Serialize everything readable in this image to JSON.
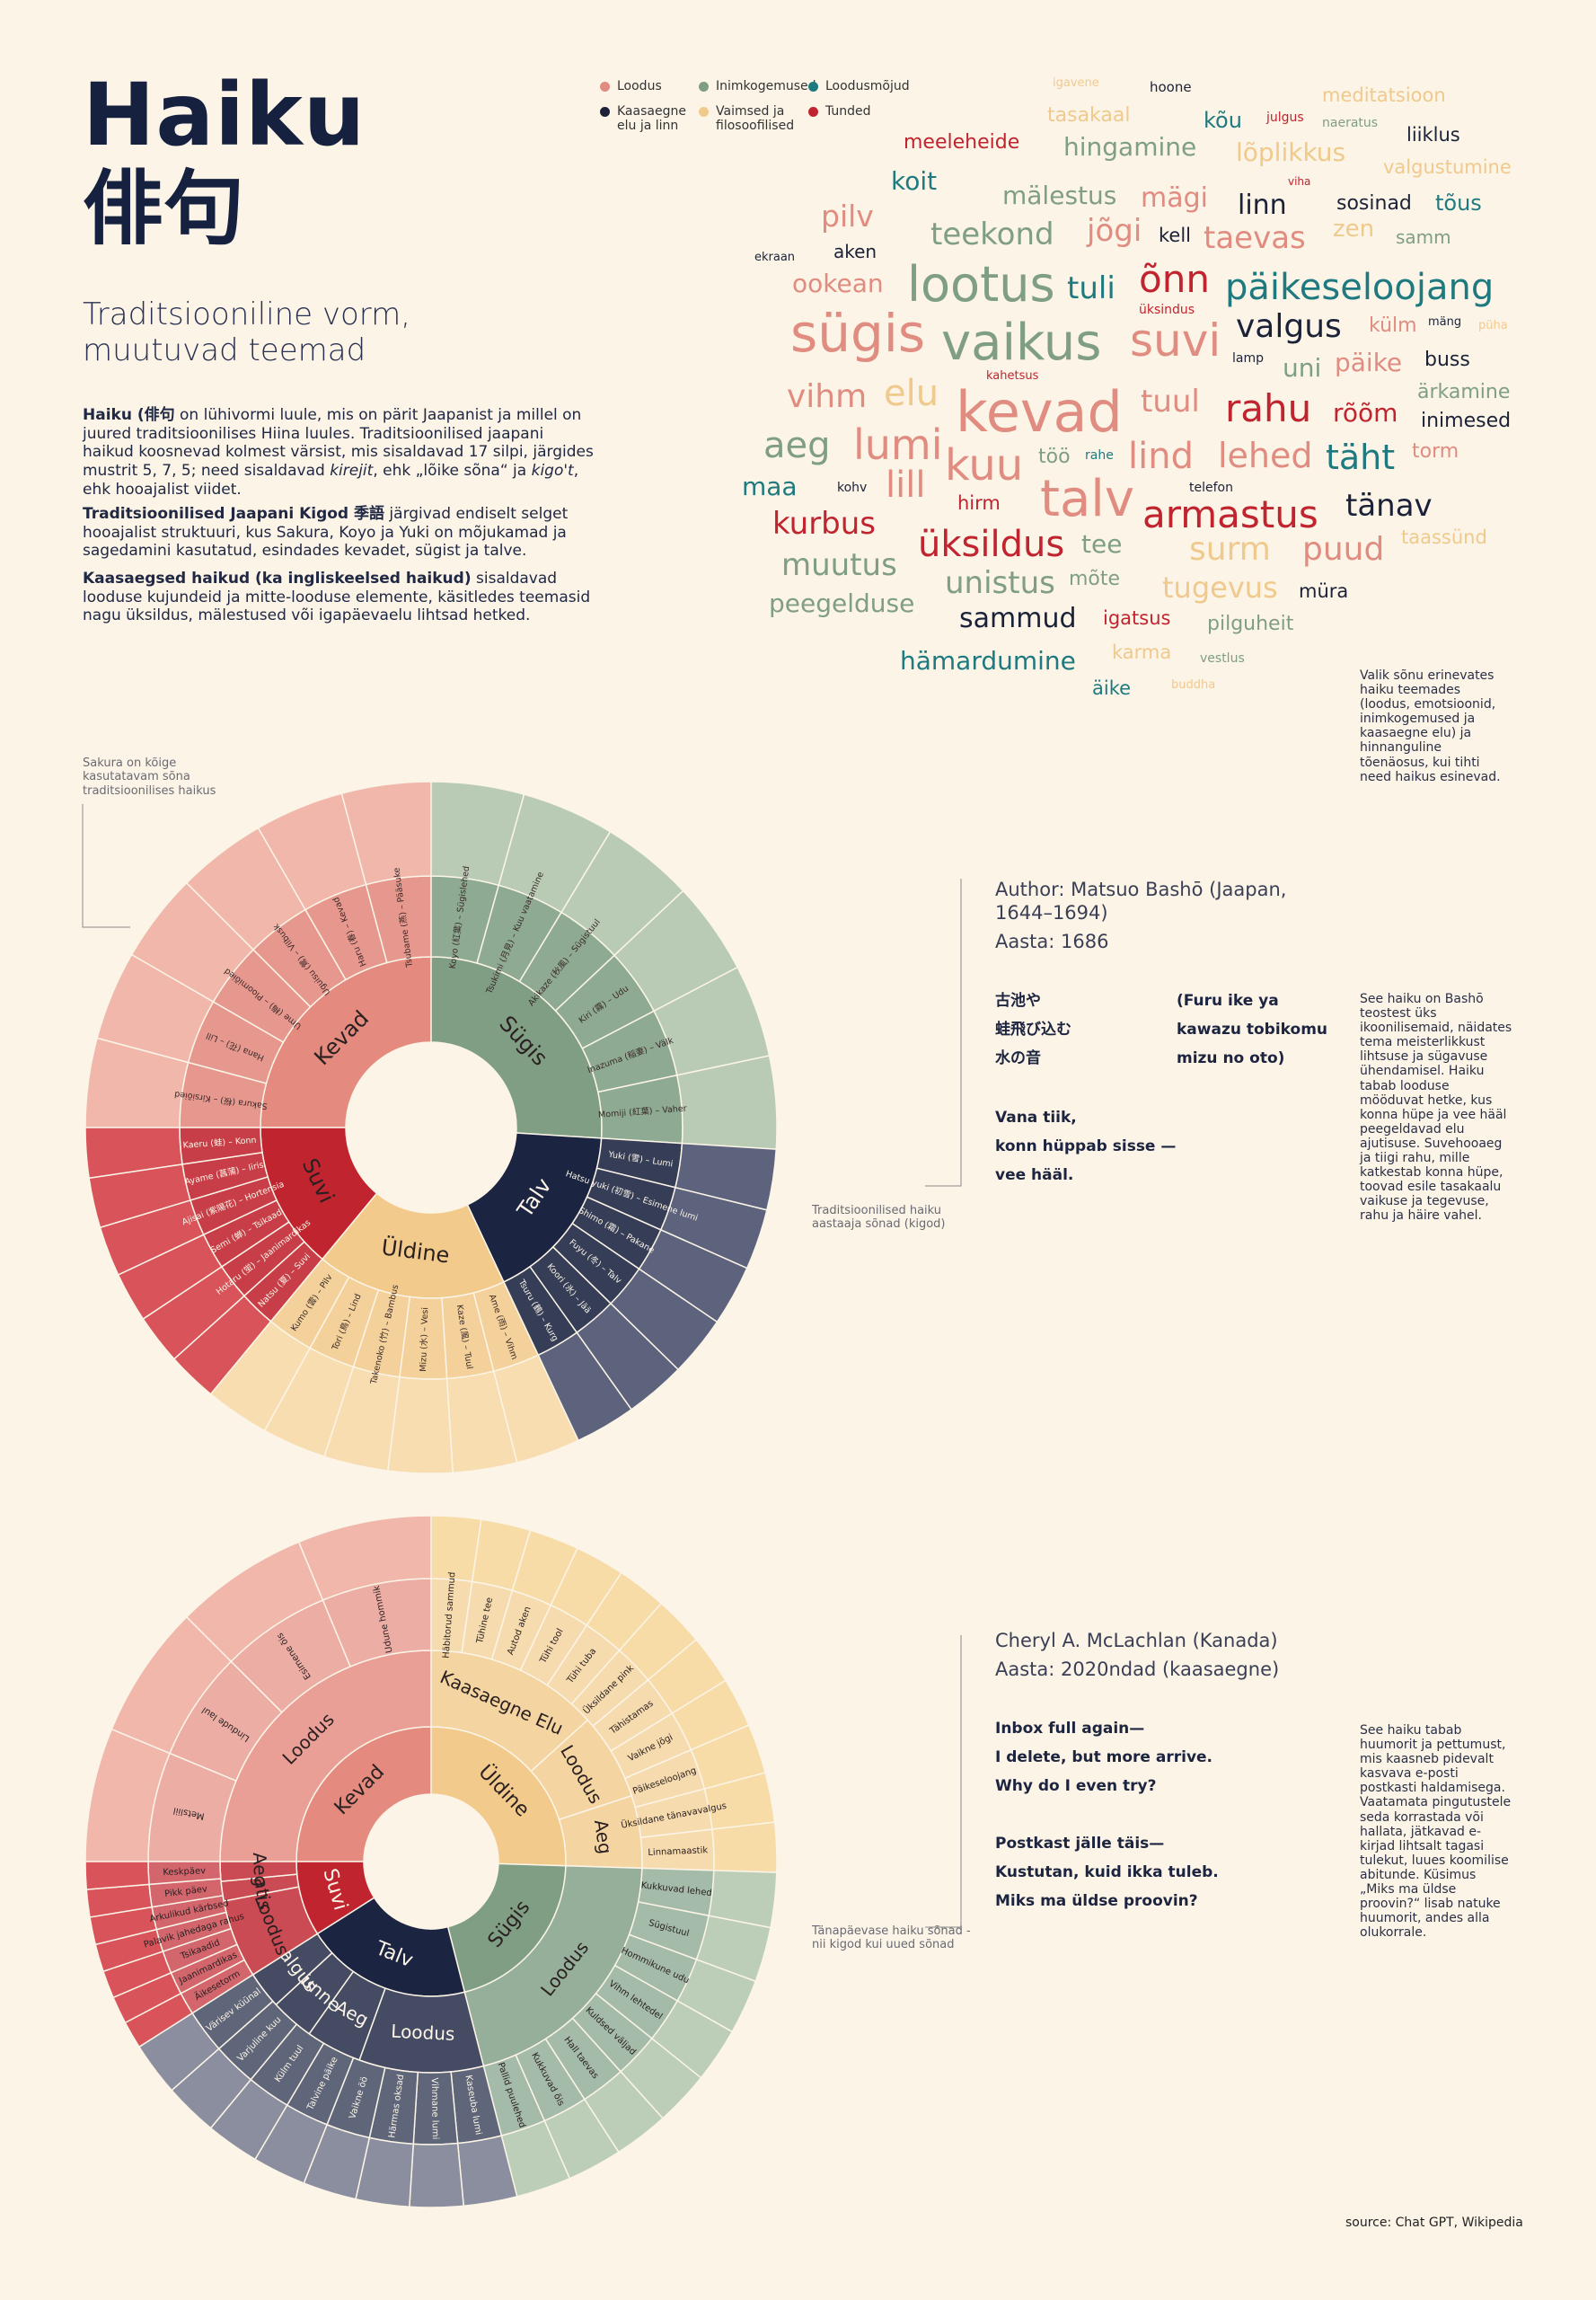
{
  "header": {
    "title": "Haiku",
    "title_jp": "俳句",
    "subtitle": "Traditsiooniline  vorm, muutuvad teemad"
  },
  "intro": {
    "p1_bold": "Haiku (俳句",
    "p1_rest": " on lühivormi luule, mis on pärit Jaapanist ja millel on juured traditsioonilises Hiina luules. Traditsioonilised jaapani haikud koosnevad kolmest värsist, mis sisaldavad 17 silpi, järgides mustrit 5, 7, 5; need sisaldavad ",
    "p1_kire": "kirejit",
    "p1_mid": ", ehk „lõike sõna“ ja ",
    "p1_kigo": "kigo't",
    "p1_end": ", ehk hooajalist viidet.",
    "p2_bold": "Traditsioonilised Jaapani Kigod 季語",
    "p2_rest": " järgivad endiselt selget hooajalist struktuuri, kus Sakura, Koyo ja Yuki on mõjukamad ja sagedamini kasutatud, esindades kevadet, sügist ja talve.",
    "p3_bold": "Kaasaegsed haikud (ka ingliskeelsed haikud)",
    "p3_rest": " sisaldavad looduse kujundeid ja mitte-looduse elemente, käsitledes teemasid nagu üksildus, mälestused või igapäevaelu lihtsad hetked."
  },
  "legend": [
    {
      "label": "Loodus",
      "color": "#e08c80"
    },
    {
      "label": "Inimkogemused",
      "color": "#7f9e84"
    },
    {
      "label": "Loodusmõjud",
      "color": "#1f7a80"
    },
    {
      "label": "Kaasaegne elu ja linn",
      "color": "#1b2238"
    },
    {
      "label": "Vaimsed ja filosoofilised",
      "color": "#f0c98c"
    },
    {
      "label": "Tunded",
      "color": "#c0242f"
    }
  ],
  "wordcloud": [
    {
      "t": "igavene",
      "c": "#f2c98f",
      "s": 13
    },
    {
      "t": "hoone",
      "c": "#1b2238",
      "s": 15
    },
    {
      "t": "meditatsioon",
      "c": "#f0c98c",
      "s": 21
    },
    {
      "t": "tasakaal",
      "c": "#f0c98c",
      "s": 22
    },
    {
      "t": "kõu",
      "c": "#1f7a80",
      "s": 24
    },
    {
      "t": "julgus",
      "c": "#c0242f",
      "s": 14
    },
    {
      "t": "naeratus",
      "c": "#7f9e84",
      "s": 14
    },
    {
      "t": "meeleheide",
      "c": "#c0242f",
      "s": 22
    },
    {
      "t": "hingamine",
      "c": "#7f9e84",
      "s": 28
    },
    {
      "t": "lõplikkus",
      "c": "#f0c98c",
      "s": 28
    },
    {
      "t": "liiklus",
      "c": "#1b2238",
      "s": 21
    },
    {
      "t": "valgustumine",
      "c": "#f0c98c",
      "s": 21
    },
    {
      "t": "koit",
      "c": "#1f7a80",
      "s": 28
    },
    {
      "t": "viha",
      "c": "#c0242f",
      "s": 12
    },
    {
      "t": "mälestus",
      "c": "#7f9e84",
      "s": 28
    },
    {
      "t": "mägi",
      "c": "#e08c80",
      "s": 30
    },
    {
      "t": "linn",
      "c": "#1b2238",
      "s": 30
    },
    {
      "t": "sosinad",
      "c": "#1b2238",
      "s": 22
    },
    {
      "t": "tõus",
      "c": "#1f7a80",
      "s": 24
    },
    {
      "t": "pilv",
      "c": "#e08c80",
      "s": 33
    },
    {
      "t": "teekond",
      "c": "#7f9e84",
      "s": 34
    },
    {
      "t": "jõgi",
      "c": "#e08c80",
      "s": 34
    },
    {
      "t": "kell",
      "c": "#1b2238",
      "s": 21
    },
    {
      "t": "taevas",
      "c": "#e08c80",
      "s": 34
    },
    {
      "t": "zen",
      "c": "#f0c98c",
      "s": 26
    },
    {
      "t": "samm",
      "c": "#7f9e84",
      "s": 20
    },
    {
      "t": "ekraan",
      "c": "#1b2238",
      "s": 13
    },
    {
      "t": "aken",
      "c": "#1b2238",
      "s": 20
    },
    {
      "t": "ookean",
      "c": "#e08c80",
      "s": 28
    },
    {
      "t": "lootus",
      "c": "#7f9e84",
      "s": 54
    },
    {
      "t": "tuli",
      "c": "#1f7a80",
      "s": 34
    },
    {
      "t": "õnn",
      "c": "#c0242f",
      "s": 42
    },
    {
      "t": "päikeseloojang",
      "c": "#1f7a80",
      "s": 40
    },
    {
      "t": "üksindus",
      "c": "#c0242f",
      "s": 14
    },
    {
      "t": "sügis",
      "c": "#e08c80",
      "s": 58
    },
    {
      "t": "vaikus",
      "c": "#7f9e84",
      "s": 56
    },
    {
      "t": "suvi",
      "c": "#e08c80",
      "s": 50
    },
    {
      "t": "valgus",
      "c": "#1b2238",
      "s": 36
    },
    {
      "t": "külm",
      "c": "#e08c80",
      "s": 22
    },
    {
      "t": "mäng",
      "c": "#1b2238",
      "s": 13
    },
    {
      "t": "püha",
      "c": "#f2c98f",
      "s": 13
    },
    {
      "t": "lamp",
      "c": "#1b2238",
      "s": 14
    },
    {
      "t": "uni",
      "c": "#7f9e84",
      "s": 28
    },
    {
      "t": "päike",
      "c": "#e08c80",
      "s": 28
    },
    {
      "t": "buss",
      "c": "#1b2238",
      "s": 22
    },
    {
      "t": "vihm",
      "c": "#e08c80",
      "s": 36
    },
    {
      "t": "elu",
      "c": "#f0c98c",
      "s": 40
    },
    {
      "t": "kevad",
      "c": "#e08c80",
      "s": 62
    },
    {
      "t": "kahetsus",
      "c": "#c0242f",
      "s": 13
    },
    {
      "t": "tuul",
      "c": "#e08c80",
      "s": 34
    },
    {
      "t": "rahu",
      "c": "#c0242f",
      "s": 42
    },
    {
      "t": "rõõm",
      "c": "#c0242f",
      "s": 28
    },
    {
      "t": "ärkamine",
      "c": "#7f9e84",
      "s": 22
    },
    {
      "t": "inimesed",
      "c": "#1b2238",
      "s": 22
    },
    {
      "t": "aeg",
      "c": "#7f9e84",
      "s": 40
    },
    {
      "t": "lumi",
      "c": "#e08c80",
      "s": 46
    },
    {
      "t": "kuu",
      "c": "#e08c80",
      "s": 48
    },
    {
      "t": "töö",
      "c": "#7f9e84",
      "s": 22
    },
    {
      "t": "rahe",
      "c": "#1f7a80",
      "s": 14
    },
    {
      "t": "lind",
      "c": "#e08c80",
      "s": 40
    },
    {
      "t": "lehed",
      "c": "#e08c80",
      "s": 38
    },
    {
      "t": "täht",
      "c": "#1f7a80",
      "s": 38
    },
    {
      "t": "torm",
      "c": "#e08c80",
      "s": 22
    },
    {
      "t": "maa",
      "c": "#1f7a80",
      "s": 28
    },
    {
      "t": "kohv",
      "c": "#1b2238",
      "s": 14
    },
    {
      "t": "lill",
      "c": "#e08c80",
      "s": 40
    },
    {
      "t": "talv",
      "c": "#e08c80",
      "s": 56
    },
    {
      "t": "telefon",
      "c": "#1b2238",
      "s": 14
    },
    {
      "t": "hirm",
      "c": "#c0242f",
      "s": 21
    },
    {
      "t": "armastus",
      "c": "#c0242f",
      "s": 42
    },
    {
      "t": "tänav",
      "c": "#1b2238",
      "s": 34
    },
    {
      "t": "kurbus",
      "c": "#c0242f",
      "s": 34
    },
    {
      "t": "üksildus",
      "c": "#c0242f",
      "s": 40
    },
    {
      "t": "tee",
      "c": "#7f9e84",
      "s": 28
    },
    {
      "t": "surm",
      "c": "#f0c98c",
      "s": 36
    },
    {
      "t": "puud",
      "c": "#e08c80",
      "s": 36
    },
    {
      "t": "taassünd",
      "c": "#f0c98c",
      "s": 21
    },
    {
      "t": "muutus",
      "c": "#7f9e84",
      "s": 34
    },
    {
      "t": "unistus",
      "c": "#7f9e84",
      "s": 34
    },
    {
      "t": "mõte",
      "c": "#7f9e84",
      "s": 22
    },
    {
      "t": "tugevus",
      "c": "#f0c98c",
      "s": 32
    },
    {
      "t": "müra",
      "c": "#1b2238",
      "s": 21
    },
    {
      "t": "peegelduse",
      "c": "#7f9e84",
      "s": 28
    },
    {
      "t": "sammud",
      "c": "#1b2238",
      "s": 30
    },
    {
      "t": "igatsus",
      "c": "#c0242f",
      "s": 21
    },
    {
      "t": "pilguheit",
      "c": "#7f9e84",
      "s": 22
    },
    {
      "t": "hämardumine",
      "c": "#1f7a80",
      "s": 28
    },
    {
      "t": "karma",
      "c": "#f0c98c",
      "s": 21
    },
    {
      "t": "vestlus",
      "c": "#7f9e84",
      "s": 14
    },
    {
      "t": "buddha",
      "c": "#f0c98c",
      "s": 13
    },
    {
      "t": "äike",
      "c": "#1f7a80",
      "s": 21
    }
  ],
  "cloud_note": "Valik sõnu erinevates haiku teemades (loodus, emotsioonid, inimkogemused ja kaasaegne elu) ja hinnanguline tõenäosus, kui tihti need haikus esinevad.",
  "sakura_note": "Sakura on kõige kasutatavam sõna traditsioonilises haikus",
  "chart1": {
    "caption": "Traditsioonilised haiku aastaaja sõnad (kigod)",
    "author": "Author: Matsuo Bashō (Jaapan, 1644–1694)",
    "year": "Aasta: 1686",
    "poem_jp": [
      "古池や",
      "蛙飛び込む",
      "水の音"
    ],
    "poem_romaji": [
      "(Furu ike ya",
      "kawazu tobikomu",
      "mizu no oto)"
    ],
    "poem_et": [
      "Vana tiik,",
      "konn hüppab sisse —",
      "vee hääl."
    ],
    "note": "See haiku on Bashō teostest üks ikoonilisemaid, näidates tema meisterlikkust lihtsuse ja sügavuse ühendamisel. Haiku tabab looduse mööduvat hetke, kus konna hüpe ja vee hääl peegeldavad elu ajutisuse. Suvehooaeg ja tiigi rahu, mille katkestab konna hüpe, toovad esile tasakaalu vaikuse ja tegevuse, rahu ja häire vahel.",
    "seasons": [
      {
        "name": "Kevad",
        "color": "#e48a7f",
        "outer": "#f0b7aa",
        "kigo": [
          "Sakura (桜) – Kirsiõied",
          "Hana (花) – Lill",
          "Ume (梅) – Ploomiõied",
          "Uguisu (鶯) – Vilbusk",
          "Haru (春) – Kevad",
          "Tsubame (燕) – Pääsuke"
        ]
      },
      {
        "name": "Sügis",
        "color": "#7f9e84",
        "outer": "#b9cbb5",
        "kigo": [
          "Koyo (紅葉) – Sügislehed",
          "Tsukimi (月見) – Kuu vaatamine",
          "Akikaze (秋風) – Sügistuul",
          "Kiri (霧) – Udu",
          "Inazuma (稲妻) – Välk",
          "Momiji (紅葉) – Vaher"
        ]
      },
      {
        "name": "Talv",
        "color": "#1b2440",
        "outer": "#5d637d",
        "kigo": [
          "Yuki (雪) – Lumi",
          "Hatsu yuki (初雪) – Esimene lumi",
          "Shimo (霜) – Pakane",
          "Fuyu (冬) – Talv",
          "Koori (氷) – Jää",
          "Tsuru (鶴) – Kurg"
        ]
      },
      {
        "name": "Üldine",
        "color": "#f2cb8c",
        "outer": "#f7ddb0",
        "kigo": [
          "Ame (雨) – Vihm",
          "Kaze (風) – Tuul",
          "Mizu (水) – Vesi",
          "Takenoko (竹) – Bambus",
          "Tori (鳥) – Lind",
          "Kumo (雲) – Pilv"
        ]
      },
      {
        "name": "Suvi",
        "color": "#c0242f",
        "outer": "#d8545a",
        "kigo": [
          "Natsu (夏) – Suvi",
          "Hotaru (蛍) – Jaanimardikas",
          "Semi (蝉) – Tsikaad",
          "Ajisai (紫陽花) – Hortensia",
          "Ayame (菖蒲) – Iiris",
          "Kaeru (蛙) – Konn"
        ]
      }
    ]
  },
  "chart2": {
    "caption": "Tänapäevase haiku sõnad - nii kigod kui uued sõnad",
    "author": "Cheryl A. McLachlan (Kanada)",
    "year": "Aasta: 2020ndad (kaasaegne)",
    "poem_en": [
      "Inbox full again—",
      "I delete, but more arrive.",
      "Why do I even try?"
    ],
    "poem_et": [
      "Postkast jälle täis—",
      "Kustutan, kuid ikka tuleb.",
      "Miks ma üldse proovin?"
    ],
    "note": "See haiku tabab huumorit ja pettumust, mis kaasneb pidevalt kasvava e-posti postkasti haldamisega. Vaatamata pingutustele seda korrastada või hallata, jätkavad e-kirjad lihtsalt tagasi tulekut, luues koomilise abitunde. Küsimus „Miks ma üldse proovin?“ lisab natuke huumorit, andes alla olukorrale.",
    "inner": [
      {
        "name": "Kevad",
        "color": "#e48a7f",
        "mid": [
          {
            "n": "Loodus",
            "w": 1
          }
        ],
        "outer": [
          "Metsliil",
          "Lindude laul",
          "Esimene õis",
          "Udune hommik"
        ]
      },
      {
        "name": "Üldine",
        "color": "#f2cb8c",
        "mid": [
          {
            "n": "Kaasaegne Elu",
            "w": 1.2
          },
          {
            "n": "Loodus",
            "w": 0.6
          },
          {
            "n": "Aeg",
            "w": 0.5
          }
        ],
        "outer": [
          "Häbitorud sammud",
          "Tühine tee",
          "Autod aken",
          "Tühi tool",
          "Tühi tuba",
          "Üksildane pink",
          "Tähistamas",
          "Vaikne jõgi",
          "Päikeseloojang",
          "Üksildane tänavavalgus",
          "Linnamaastik"
        ]
      },
      {
        "name": "Sügis",
        "color": "#7f9e84",
        "mid": [
          {
            "n": "Loodus",
            "w": 1
          }
        ],
        "outer": [
          "Kukkuvad lehed",
          "Sügistuul",
          "Hommikune udu",
          "Vihm lehtedel",
          "Kuldsed väljad",
          "Hall taevas",
          "Kukkuvad õis",
          "Pallid puulehed"
        ]
      },
      {
        "name": "Talv",
        "color": "#1b2440",
        "mid": [
          {
            "n": "Loodus",
            "w": 1
          },
          {
            "n": "Aeg",
            "w": 0.45
          },
          {
            "n": "Tunne",
            "w": 0.35
          },
          {
            "n": "Valgus",
            "w": 0.3
          }
        ],
        "outer": [
          "Kaseuba lumi",
          "Vihmane lumi",
          "Härmas oksad",
          "Vaikne öö",
          "Talvine päike",
          "Külm tuul",
          "Varjuline kuu",
          "Värisev küünal"
        ]
      },
      {
        "name": "Suvi",
        "color": "#c0242f",
        "mid": [
          {
            "n": "Loodus",
            "w": 1
          },
          {
            "n": "Jaatis",
            "w": 0.25
          },
          {
            "n": "Aeg",
            "w": 0.25
          }
        ],
        "outer": [
          "Äikesetorm",
          "Jaanimardikas",
          "Tsikaadid",
          "Palavik jahedaga rahus",
          "Arkulikud kärbsed",
          "Pikk päev",
          "Keskpäev"
        ]
      }
    ]
  },
  "source": "source: Chat GPT, Wikipedia"
}
